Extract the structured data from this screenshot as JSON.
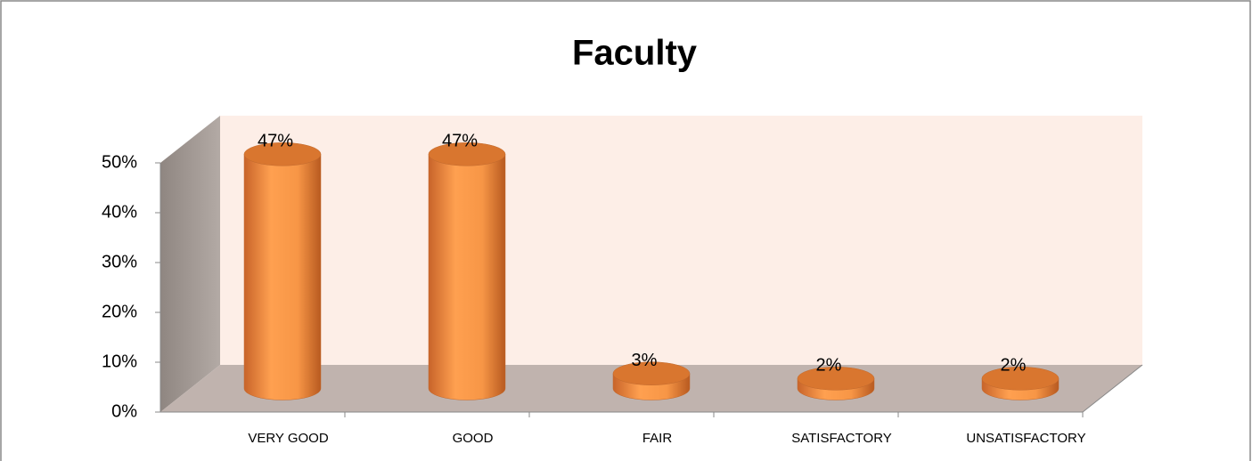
{
  "chart_data": {
    "type": "bar",
    "title": "Faculty",
    "categories": [
      "VERY GOOD",
      "GOOD",
      "FAIR",
      "SATISFACTORY",
      "UNSATISFACTORY"
    ],
    "values": [
      47,
      47,
      3,
      2,
      2
    ],
    "value_labels": [
      "47%",
      "47%",
      "3%",
      "2%",
      "2%"
    ],
    "color": "#f79646",
    "ylim": [
      0,
      50
    ],
    "yticks": [
      {
        "value": 0,
        "label": "0%"
      },
      {
        "value": 10,
        "label": "10%"
      },
      {
        "value": 20,
        "label": "20%"
      },
      {
        "value": 30,
        "label": "30%"
      },
      {
        "value": 40,
        "label": "40%"
      },
      {
        "value": 50,
        "label": "50%"
      }
    ]
  }
}
